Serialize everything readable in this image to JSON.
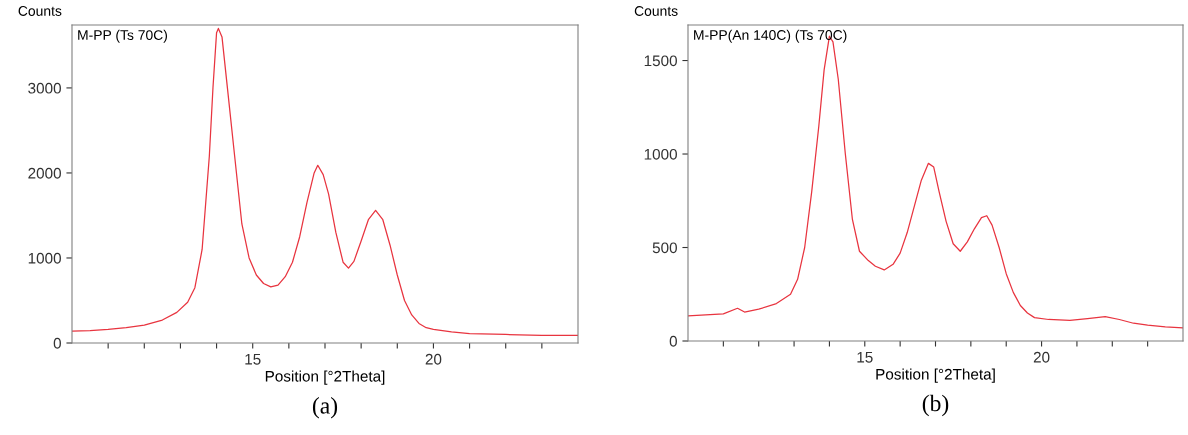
{
  "chart_data": [
    {
      "type": "line",
      "xlabel": "Position [°2Theta]",
      "ylabel": "Counts",
      "annotations": [
        "M-PP (Ts 70C)",
        "(a)"
      ],
      "xlim": [
        10,
        24
      ],
      "ylim": [
        0,
        3740
      ],
      "xticks": [
        {
          "value": 11,
          "label": null
        },
        {
          "value": 12,
          "label": null
        },
        {
          "value": 13,
          "label": null
        },
        {
          "value": 14,
          "label": null
        },
        15,
        {
          "value": 16,
          "label": null
        },
        {
          "value": 17,
          "label": null
        },
        {
          "value": 18,
          "label": null
        },
        {
          "value": 19,
          "label": null
        },
        20,
        {
          "value": 21,
          "label": null
        },
        {
          "value": 22,
          "label": null
        },
        {
          "value": 23,
          "label": null
        }
      ],
      "yticks": [
        0,
        1000,
        2000,
        3000
      ],
      "grid": false,
      "legend": false,
      "marker": "none",
      "line_style": "solid",
      "series": [
        {
          "color": "#e8343f",
          "x": [
            10.0,
            10.5,
            11.0,
            11.5,
            12.0,
            12.5,
            12.9,
            13.2,
            13.4,
            13.6,
            13.8,
            13.9,
            14.0,
            14.05,
            14.15,
            14.3,
            14.5,
            14.7,
            14.9,
            15.1,
            15.3,
            15.5,
            15.7,
            15.9,
            16.1,
            16.3,
            16.5,
            16.7,
            16.8,
            16.95,
            17.1,
            17.3,
            17.5,
            17.65,
            17.8,
            18.0,
            18.2,
            18.4,
            18.6,
            18.8,
            19.0,
            19.2,
            19.4,
            19.6,
            19.8,
            20.0,
            20.5,
            21.0,
            22.0,
            23.0,
            24.0
          ],
          "values": [
            140,
            145,
            160,
            180,
            210,
            270,
            360,
            480,
            650,
            1100,
            2200,
            3000,
            3650,
            3700,
            3600,
            3000,
            2200,
            1400,
            1000,
            800,
            700,
            660,
            680,
            780,
            950,
            1250,
            1650,
            2000,
            2090,
            1980,
            1750,
            1300,
            950,
            880,
            960,
            1200,
            1450,
            1560,
            1450,
            1150,
            800,
            500,
            330,
            230,
            180,
            160,
            130,
            110,
            100,
            90,
            90
          ]
        }
      ]
    },
    {
      "type": "line",
      "xlabel": "Position [°2Theta]",
      "ylabel": "Counts",
      "annotations": [
        "M-PP(An 140C) (Ts 70C)",
        "(b)"
      ],
      "xlim": [
        10,
        24
      ],
      "ylim": [
        0,
        1690
      ],
      "xticks": [
        {
          "value": 11,
          "label": null
        },
        {
          "value": 12,
          "label": null
        },
        {
          "value": 13,
          "label": null
        },
        {
          "value": 14,
          "label": null
        },
        15,
        {
          "value": 16,
          "label": null
        },
        {
          "value": 17,
          "label": null
        },
        {
          "value": 18,
          "label": null
        },
        {
          "value": 19,
          "label": null
        },
        20,
        {
          "value": 21,
          "label": null
        },
        {
          "value": 22,
          "label": null
        },
        {
          "value": 23,
          "label": null
        }
      ],
      "yticks": [
        0,
        500,
        1000,
        1500
      ],
      "grid": false,
      "legend": false,
      "marker": "none",
      "line_style": "solid",
      "series": [
        {
          "color": "#e8343f",
          "x": [
            10.0,
            10.5,
            11.0,
            11.4,
            11.6,
            12.0,
            12.5,
            12.9,
            13.1,
            13.3,
            13.5,
            13.7,
            13.85,
            14.0,
            14.1,
            14.25,
            14.45,
            14.65,
            14.85,
            15.1,
            15.3,
            15.55,
            15.8,
            16.0,
            16.2,
            16.4,
            16.6,
            16.8,
            16.95,
            17.1,
            17.3,
            17.5,
            17.7,
            17.9,
            18.1,
            18.3,
            18.45,
            18.6,
            18.8,
            19.0,
            19.2,
            19.4,
            19.6,
            19.8,
            20.2,
            20.8,
            21.3,
            21.8,
            22.2,
            22.6,
            23.0,
            23.5,
            24.0
          ],
          "values": [
            135,
            140,
            145,
            175,
            155,
            170,
            200,
            250,
            330,
            500,
            800,
            1150,
            1450,
            1630,
            1600,
            1400,
            1000,
            650,
            480,
            430,
            400,
            380,
            410,
            470,
            580,
            720,
            860,
            950,
            930,
            800,
            640,
            520,
            480,
            530,
            600,
            660,
            670,
            620,
            500,
            360,
            260,
            190,
            150,
            125,
            115,
            110,
            120,
            130,
            115,
            95,
            85,
            75,
            70
          ]
        }
      ]
    }
  ]
}
